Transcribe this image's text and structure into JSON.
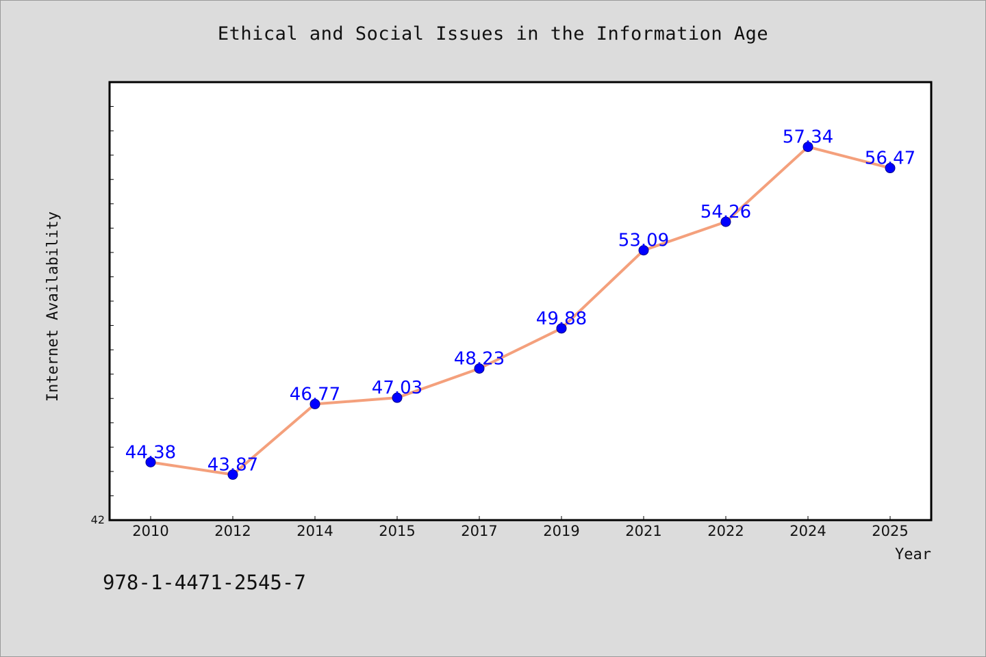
{
  "figure": {
    "title": "Ethical and Social Issues in the Information Age",
    "footer_text": "978-1-4471-2545-7"
  },
  "chart_data": {
    "type": "line",
    "title": "Ethical and Social Issues in the Information Age",
    "xlabel": "Year",
    "ylabel": "Internet Availability",
    "categories": [
      "2010",
      "2012",
      "2014",
      "2015",
      "2017",
      "2019",
      "2021",
      "2022",
      "2024",
      "2025"
    ],
    "series": [
      {
        "values": [
          44.38,
          43.87,
          46.77,
          47.03,
          48.23,
          49.88,
          53.09,
          54.26,
          57.34,
          56.47
        ],
        "line_color": "#f4a07c",
        "marker_color": "#0000ff",
        "label_color": "#0000ff"
      }
    ],
    "ylim": [
      42,
      60
    ],
    "y_tick_labels": [
      "42"
    ],
    "y_minor_tick_step": 1,
    "grid": false,
    "legend": "none",
    "data_labels": true,
    "colors": {
      "background": "#dcdcdc",
      "plot_background": "#ffffff",
      "axis": "#000000"
    }
  }
}
